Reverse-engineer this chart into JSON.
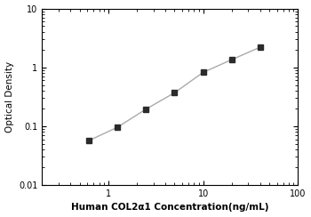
{
  "x": [
    0.625,
    1.25,
    2.5,
    5.0,
    10.0,
    20.0,
    40.0
  ],
  "y": [
    0.057,
    0.096,
    0.195,
    0.37,
    0.82,
    1.35,
    2.2
  ],
  "xlim": [
    0.2,
    100
  ],
  "ylim": [
    0.01,
    10
  ],
  "xlabel": "Human COL2α1 Concentration(ng/mL)",
  "ylabel": "Optical Density",
  "xticks": [
    1,
    10,
    100
  ],
  "xtick_labels": [
    "1",
    "10",
    "100"
  ],
  "yticks": [
    0.01,
    0.1,
    1,
    10
  ],
  "ytick_labels": [
    "0.01",
    "0.1",
    "1",
    "10"
  ],
  "line_color": "#aaaaaa",
  "marker_color": "#2b2b2b",
  "marker": "s",
  "marker_size": 4,
  "line_width": 1.0,
  "xlabel_fontsize": 7.5,
  "ylabel_fontsize": 7.5,
  "tick_fontsize": 7,
  "figsize": [
    3.5,
    2.44
  ],
  "dpi": 100
}
